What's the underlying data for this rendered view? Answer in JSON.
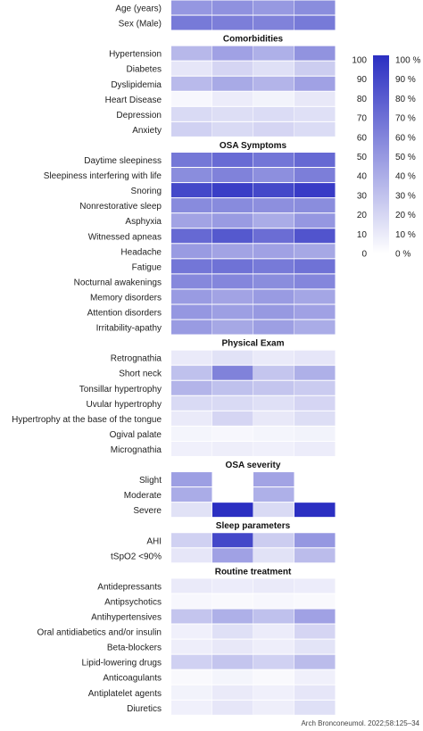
{
  "chart_data": {
    "type": "heatmap",
    "columns": 4,
    "rows": [
      {
        "kind": "row",
        "label": "Age (years)",
        "values": [
          50,
          53,
          49,
          55
        ]
      },
      {
        "kind": "row",
        "label": "Sex (Male)",
        "values": [
          64,
          62,
          60,
          64
        ]
      },
      {
        "kind": "section",
        "label": "Comorbidities"
      },
      {
        "kind": "row",
        "label": "Hypertension",
        "values": [
          34,
          45,
          38,
          52
        ]
      },
      {
        "kind": "row",
        "label": "Diabetes",
        "values": [
          12,
          20,
          15,
          24
        ]
      },
      {
        "kind": "row",
        "label": "Dyslipidemia",
        "values": [
          33,
          41,
          36,
          45
        ]
      },
      {
        "kind": "row",
        "label": "Heart Disease",
        "values": [
          4,
          9,
          6,
          11
        ]
      },
      {
        "kind": "row",
        "label": "Depression",
        "values": [
          18,
          16,
          17,
          15
        ]
      },
      {
        "kind": "row",
        "label": "Anxiety",
        "values": [
          22,
          18,
          20,
          17
        ]
      },
      {
        "kind": "section",
        "label": "OSA Symptoms"
      },
      {
        "kind": "row",
        "label": "Daytime sleepiness",
        "values": [
          65,
          71,
          66,
          72
        ]
      },
      {
        "kind": "row",
        "label": "Sleepiness interfering with life",
        "values": [
          55,
          60,
          54,
          62
        ]
      },
      {
        "kind": "row",
        "label": "Snoring",
        "values": [
          88,
          93,
          88,
          94
        ]
      },
      {
        "kind": "row",
        "label": "Nonrestorative sleep",
        "values": [
          56,
          56,
          54,
          55
        ]
      },
      {
        "kind": "row",
        "label": "Asphyxia",
        "values": [
          44,
          48,
          40,
          50
        ]
      },
      {
        "kind": "row",
        "label": "Witnessed apneas",
        "values": [
          72,
          80,
          70,
          82
        ]
      },
      {
        "kind": "row",
        "label": "Headache",
        "values": [
          48,
          44,
          45,
          42
        ]
      },
      {
        "kind": "row",
        "label": "Fatigue",
        "values": [
          66,
          68,
          64,
          68
        ]
      },
      {
        "kind": "row",
        "label": "Nocturnal awakenings",
        "values": [
          57,
          58,
          55,
          58
        ]
      },
      {
        "kind": "row",
        "label": "Memory disorders",
        "values": [
          48,
          44,
          48,
          43
        ]
      },
      {
        "kind": "row",
        "label": "Attention disorders",
        "values": [
          50,
          46,
          49,
          45
        ]
      },
      {
        "kind": "row",
        "label": "Irritability-apathy",
        "values": [
          48,
          42,
          46,
          40
        ]
      },
      {
        "kind": "section",
        "label": "Physical Exam"
      },
      {
        "kind": "row",
        "label": "Retrognathia",
        "values": [
          10,
          14,
          10,
          12
        ]
      },
      {
        "kind": "row",
        "label": "Short neck",
        "values": [
          30,
          60,
          28,
          38
        ]
      },
      {
        "kind": "row",
        "label": "Tonsillar hypertrophy",
        "values": [
          36,
          30,
          28,
          25
        ]
      },
      {
        "kind": "row",
        "label": "Uvular hypertrophy",
        "values": [
          18,
          18,
          15,
          20
        ]
      },
      {
        "kind": "row",
        "label": "Hypertrophy at the base of the tongue",
        "values": [
          10,
          20,
          11,
          16
        ]
      },
      {
        "kind": "row",
        "label": "Ogival palate",
        "values": [
          5,
          4,
          5,
          6
        ]
      },
      {
        "kind": "row",
        "label": "Micrognathia",
        "values": [
          7,
          8,
          7,
          9
        ]
      },
      {
        "kind": "section",
        "label": "OSA severity"
      },
      {
        "kind": "row",
        "label": "Slight",
        "values": [
          46,
          null,
          44,
          null
        ]
      },
      {
        "kind": "row",
        "label": "Moderate",
        "values": [
          40,
          null,
          38,
          null
        ]
      },
      {
        "kind": "row",
        "label": "Severe",
        "values": [
          14,
          100,
          18,
          100
        ]
      },
      {
        "kind": "section",
        "label": "Sleep parameters"
      },
      {
        "kind": "row",
        "label": "AHI",
        "values": [
          22,
          88,
          24,
          50
        ]
      },
      {
        "kind": "row",
        "label": "tSpO2 <90%",
        "values": [
          12,
          45,
          14,
          32
        ]
      },
      {
        "kind": "section",
        "label": "Routine treatment"
      },
      {
        "kind": "row",
        "label": "Antidepressants",
        "values": [
          10,
          9,
          10,
          9
        ]
      },
      {
        "kind": "row",
        "label": "Antipsychotics",
        "values": [
          4,
          3,
          4,
          3
        ]
      },
      {
        "kind": "row",
        "label": "Antihypertensives",
        "values": [
          28,
          38,
          30,
          45
        ]
      },
      {
        "kind": "row",
        "label": "Oral antidiabetics and/or insulin",
        "values": [
          7,
          15,
          9,
          20
        ]
      },
      {
        "kind": "row",
        "label": "Beta-blockers",
        "values": [
          8,
          11,
          8,
          13
        ]
      },
      {
        "kind": "row",
        "label": "Lipid-lowering drugs",
        "values": [
          22,
          28,
          22,
          32
        ]
      },
      {
        "kind": "row",
        "label": "Anticoagulants",
        "values": [
          3,
          5,
          3,
          7
        ]
      },
      {
        "kind": "row",
        "label": "Antiplatelet agents",
        "values": [
          6,
          10,
          7,
          12
        ]
      },
      {
        "kind": "row",
        "label": "Diuretics",
        "values": [
          7,
          12,
          8,
          15
        ]
      }
    ],
    "colorbar": {
      "min": 0,
      "max": 100,
      "left_ticks": [
        "100",
        "90",
        "80",
        "70",
        "60",
        "50",
        "40",
        "30",
        "20",
        "10",
        "0"
      ],
      "right_ticks": [
        "100 %",
        "90 %",
        "80 %",
        "70 %",
        "60 %",
        "50 %",
        "40 %",
        "30 %",
        "20 %",
        "10 %",
        "0 %"
      ],
      "color_low": "#ffffff",
      "color_high": "#2b2fc2"
    }
  },
  "citation": "Arch Bronconeumol. 2022;58:125–34"
}
